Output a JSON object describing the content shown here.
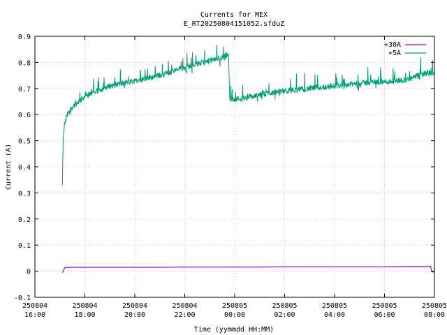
{
  "chart_data": {
    "type": "line",
    "title": "Currents for MEX",
    "subtitle": "E_RT20250804151052.sfduZ",
    "xlabel": "Time (yymmdd HH:MM)",
    "ylabel": "Current (A)",
    "x_range_hours": [
      16,
      32
    ],
    "ylim": [
      -0.1,
      0.9
    ],
    "y_ticks": [
      "-0.1",
      "0",
      "0.1",
      "0.2",
      "0.3",
      "0.4",
      "0.5",
      "0.6",
      "0.7",
      "0.8",
      "0.9"
    ],
    "x_ticks": [
      {
        "date": "250804",
        "time": "16:00"
      },
      {
        "date": "250804",
        "time": "18:00"
      },
      {
        "date": "250804",
        "time": "20:00"
      },
      {
        "date": "250804",
        "time": "22:00"
      },
      {
        "date": "250805",
        "time": "00:00"
      },
      {
        "date": "250805",
        "time": "02:00"
      },
      {
        "date": "250805",
        "time": "04:00"
      },
      {
        "date": "250805",
        "time": "06:00"
      },
      {
        "date": "250805",
        "time": "08:00"
      }
    ],
    "grid": true,
    "legend_position": "top-right",
    "series": [
      {
        "name": "+30A",
        "color": "#9400d3",
        "points": [
          [
            17.1,
            -0.005
          ],
          [
            17.15,
            0.005
          ],
          [
            17.2,
            0.014
          ],
          [
            17.5,
            0.015
          ],
          [
            18.0,
            0.015
          ],
          [
            19.0,
            0.015
          ],
          [
            20.0,
            0.015
          ],
          [
            21.0,
            0.015
          ],
          [
            22.0,
            0.016
          ],
          [
            23.0,
            0.016
          ],
          [
            23.6,
            0.016
          ],
          [
            24.0,
            0.016
          ],
          [
            25.0,
            0.016
          ],
          [
            26.0,
            0.017
          ],
          [
            27.0,
            0.017
          ],
          [
            28.0,
            0.017
          ],
          [
            29.0,
            0.017
          ],
          [
            30.0,
            0.017
          ],
          [
            31.0,
            0.018
          ],
          [
            31.85,
            0.018
          ],
          [
            31.9,
            -0.003
          ],
          [
            32.0,
            -0.003
          ]
        ]
      },
      {
        "name": "+5A",
        "color": "#009e73",
        "points": [
          [
            17.1,
            0.33
          ],
          [
            17.13,
            0.5
          ],
          [
            17.18,
            0.56
          ],
          [
            17.3,
            0.6
          ],
          [
            17.5,
            0.63
          ],
          [
            18.0,
            0.67
          ],
          [
            18.5,
            0.69
          ],
          [
            19.0,
            0.71
          ],
          [
            19.5,
            0.72
          ],
          [
            20.0,
            0.73
          ],
          [
            20.5,
            0.74
          ],
          [
            21.0,
            0.75
          ],
          [
            21.5,
            0.765
          ],
          [
            22.0,
            0.78
          ],
          [
            22.5,
            0.795
          ],
          [
            23.0,
            0.805
          ],
          [
            23.5,
            0.82
          ],
          [
            23.75,
            0.83
          ],
          [
            23.8,
            0.66
          ],
          [
            24.0,
            0.66
          ],
          [
            24.5,
            0.665
          ],
          [
            25.0,
            0.675
          ],
          [
            25.5,
            0.685
          ],
          [
            26.0,
            0.69
          ],
          [
            26.5,
            0.695
          ],
          [
            27.0,
            0.7
          ],
          [
            27.5,
            0.705
          ],
          [
            28.0,
            0.71
          ],
          [
            28.5,
            0.715
          ],
          [
            29.0,
            0.72
          ],
          [
            29.5,
            0.725
          ],
          [
            30.0,
            0.725
          ],
          [
            30.5,
            0.73
          ],
          [
            31.0,
            0.735
          ],
          [
            31.5,
            0.755
          ],
          [
            31.7,
            0.76
          ],
          [
            32.0,
            0.755
          ]
        ]
      }
    ]
  }
}
